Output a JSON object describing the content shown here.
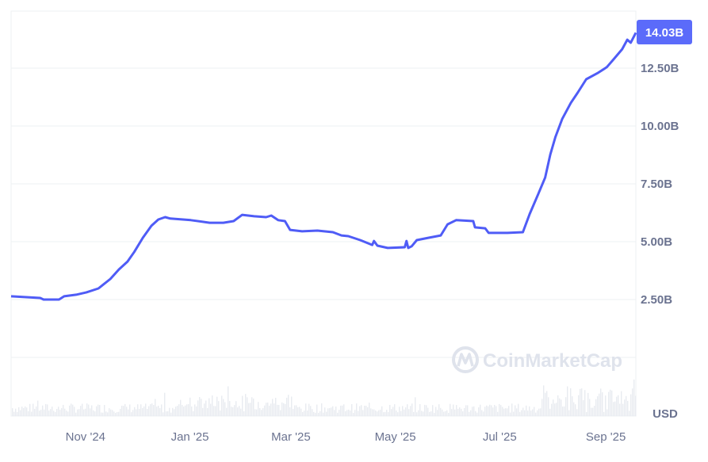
{
  "chart_data": {
    "type": "line",
    "title": "",
    "xlabel": "",
    "ylabel": "",
    "currency_label": "USD",
    "current_value_label": "14.03B",
    "ylim": [
      0,
      15
    ],
    "xlim": [
      "2024-09-19",
      "2025-09-19"
    ],
    "grid": true,
    "y_ticks": [
      {
        "value": 2.5,
        "label": "2.50B"
      },
      {
        "value": 5,
        "label": "5.00B"
      },
      {
        "value": 7.5,
        "label": "7.50B"
      },
      {
        "value": 10,
        "label": "10.00B"
      },
      {
        "value": 12.5,
        "label": "12.50B"
      }
    ],
    "x_ticks": [
      {
        "date": "2024-11-01",
        "label": "Nov '24"
      },
      {
        "date": "2025-01-01",
        "label": "Jan '25"
      },
      {
        "date": "2025-03-01",
        "label": "Mar '25"
      },
      {
        "date": "2025-05-01",
        "label": "May '25"
      },
      {
        "date": "2025-07-01",
        "label": "Jul '25"
      },
      {
        "date": "2025-09-01",
        "label": "Sep '25"
      }
    ],
    "series": [
      {
        "unit": "B USD",
        "points": [
          [
            "2024-09-19",
            2.64
          ],
          [
            "2024-10-06",
            2.57
          ],
          [
            "2024-10-08",
            2.5
          ],
          [
            "2024-10-17",
            2.5
          ],
          [
            "2024-10-20",
            2.64
          ],
          [
            "2024-10-27",
            2.71
          ],
          [
            "2024-11-02",
            2.81
          ],
          [
            "2024-11-09",
            2.98
          ],
          [
            "2024-11-16",
            3.39
          ],
          [
            "2024-11-21",
            3.8
          ],
          [
            "2024-11-26",
            4.14
          ],
          [
            "2024-11-30",
            4.56
          ],
          [
            "2024-12-05",
            5.17
          ],
          [
            "2024-12-10",
            5.69
          ],
          [
            "2024-12-14",
            5.96
          ],
          [
            "2024-12-18",
            6.06
          ],
          [
            "2024-12-21",
            6.0
          ],
          [
            "2025-01-02",
            5.93
          ],
          [
            "2025-01-13",
            5.82
          ],
          [
            "2025-01-21",
            5.82
          ],
          [
            "2025-01-27",
            5.89
          ],
          [
            "2025-02-01",
            6.16
          ],
          [
            "2025-02-08",
            6.1
          ],
          [
            "2025-02-15",
            6.06
          ],
          [
            "2025-02-18",
            6.13
          ],
          [
            "2025-02-22",
            5.93
          ],
          [
            "2025-02-26",
            5.89
          ],
          [
            "2025-03-01",
            5.51
          ],
          [
            "2025-03-08",
            5.45
          ],
          [
            "2025-03-17",
            5.48
          ],
          [
            "2025-03-26",
            5.41
          ],
          [
            "2025-03-31",
            5.27
          ],
          [
            "2025-04-04",
            5.24
          ],
          [
            "2025-04-11",
            5.07
          ],
          [
            "2025-04-18",
            4.86
          ],
          [
            "2025-04-19",
            5.03
          ],
          [
            "2025-04-21",
            4.83
          ],
          [
            "2025-04-27",
            4.73
          ],
          [
            "2025-05-07",
            4.76
          ],
          [
            "2025-05-08",
            5.03
          ],
          [
            "2025-05-09",
            4.73
          ],
          [
            "2025-05-11",
            4.8
          ],
          [
            "2025-05-14",
            5.07
          ],
          [
            "2025-05-21",
            5.17
          ],
          [
            "2025-05-28",
            5.27
          ],
          [
            "2025-06-01",
            5.75
          ],
          [
            "2025-06-06",
            5.93
          ],
          [
            "2025-06-16",
            5.89
          ],
          [
            "2025-06-17",
            5.62
          ],
          [
            "2025-06-23",
            5.58
          ],
          [
            "2025-06-25",
            5.38
          ],
          [
            "2025-07-06",
            5.38
          ],
          [
            "2025-07-15",
            5.41
          ],
          [
            "2025-07-19",
            6.2
          ],
          [
            "2025-07-24",
            7.06
          ],
          [
            "2025-07-28",
            7.77
          ],
          [
            "2025-07-31",
            8.77
          ],
          [
            "2025-08-03",
            9.52
          ],
          [
            "2025-08-07",
            10.31
          ],
          [
            "2025-08-12",
            11.0
          ],
          [
            "2025-08-16",
            11.44
          ],
          [
            "2025-08-21",
            12.02
          ],
          [
            "2025-08-28",
            12.3
          ],
          [
            "2025-09-02",
            12.54
          ],
          [
            "2025-09-06",
            12.88
          ],
          [
            "2025-09-11",
            13.32
          ],
          [
            "2025-09-14",
            13.73
          ],
          [
            "2025-09-16",
            13.6
          ],
          [
            "2025-09-19",
            14.03
          ]
        ]
      }
    ],
    "colors": {
      "line": "#4f5cf6",
      "badge": "#5b6bfa",
      "grid": "#eef0f3",
      "axis_text": "#6b7390",
      "volume": "#e8ebf0"
    }
  },
  "watermark": {
    "text": "CoinMarketCap"
  }
}
